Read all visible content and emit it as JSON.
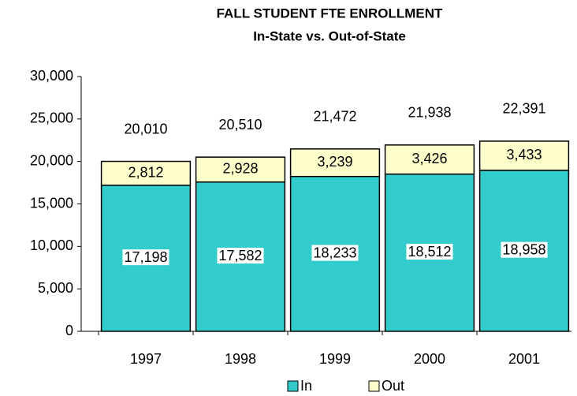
{
  "chart_data": {
    "type": "stacked_bar",
    "title": "FALL STUDENT FTE ENROLLMENT",
    "subtitle": "In-State vs. Out-of-State",
    "categories": [
      "1997",
      "1998",
      "1999",
      "2000",
      "2001"
    ],
    "series": [
      {
        "name": "In",
        "color": "#33cccc",
        "values": [
          17198,
          17582,
          18233,
          18512,
          18958
        ],
        "value_labels": [
          "17,198",
          "17,582",
          "18,233",
          "18,512",
          "18,958"
        ]
      },
      {
        "name": "Out",
        "color": "#ffffcc",
        "values": [
          2812,
          2928,
          3239,
          3426,
          3433
        ],
        "value_labels": [
          "2,812",
          "2,928",
          "3,239",
          "3,426",
          "3,433"
        ]
      }
    ],
    "totals": [
      20010,
      20510,
      21472,
      21938,
      22391
    ],
    "total_labels": [
      "20,010",
      "20,510",
      "21,472",
      "21,938",
      "22,391"
    ],
    "ylim": [
      0,
      30000
    ],
    "yticks": [
      {
        "value": 0,
        "label": "0"
      },
      {
        "value": 5000,
        "label": "5,000"
      },
      {
        "value": 10000,
        "label": "10,000"
      },
      {
        "value": 15000,
        "label": "15,000"
      },
      {
        "value": 20000,
        "label": "20,000"
      },
      {
        "value": 25000,
        "label": "25,000"
      },
      {
        "value": 30000,
        "label": "30,000"
      }
    ],
    "grid": false,
    "legend": "bottom"
  }
}
